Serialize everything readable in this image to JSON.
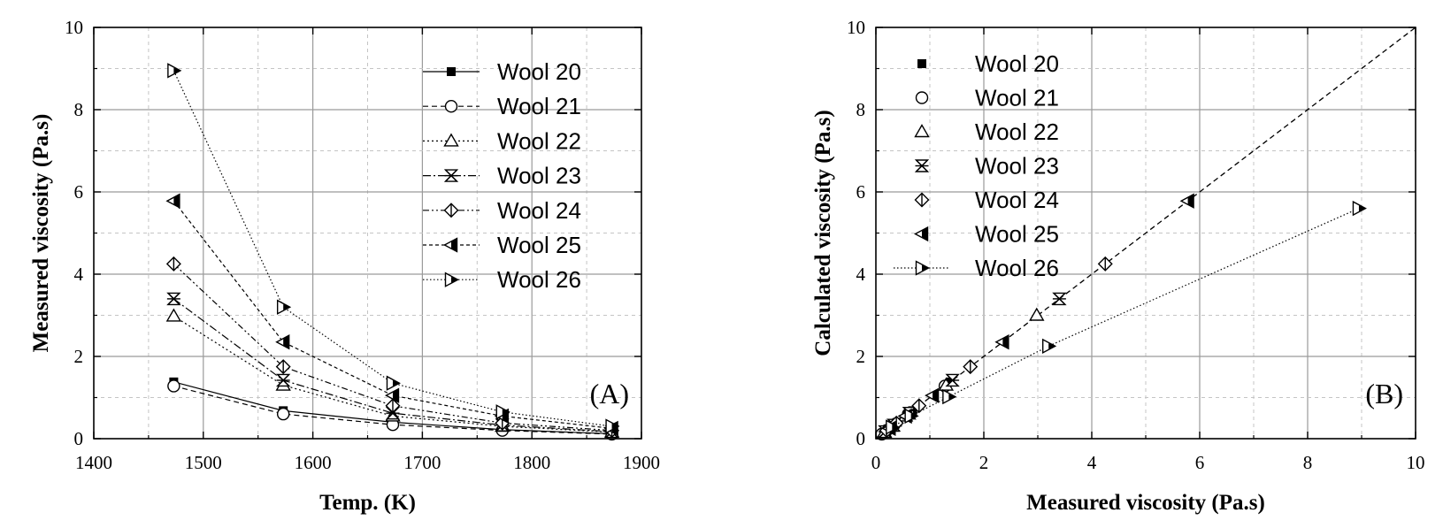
{
  "chart_data": [
    {
      "type": "line",
      "panel_label": "(A)",
      "xlabel": "Temp. (K)",
      "ylabel": "Measured viscosity (Pa.s)",
      "xlim": [
        1400,
        1900
      ],
      "ylim": [
        0,
        10
      ],
      "xticks": [
        "1400",
        "1500",
        "1600",
        "1700",
        "1800",
        "1900"
      ],
      "yticks": [
        "0",
        "2",
        "4",
        "6",
        "8",
        "10"
      ],
      "legend_position": "top-right",
      "x": [
        1473,
        1573,
        1673,
        1773,
        1873
      ],
      "series": [
        {
          "name": "Wool 20",
          "marker": "square-filled",
          "dash": "solid",
          "values": [
            1.38,
            0.68,
            0.4,
            0.22,
            0.12
          ]
        },
        {
          "name": "Wool 21",
          "marker": "circle-open",
          "dash": "dashed",
          "values": [
            1.28,
            0.6,
            0.34,
            0.2,
            0.11
          ]
        },
        {
          "name": "Wool 22",
          "marker": "triangle-open",
          "dash": "dotted",
          "values": [
            2.98,
            1.3,
            0.55,
            0.3,
            0.16
          ]
        },
        {
          "name": "Wool 23",
          "marker": "hourglass",
          "dash": "dashdot",
          "values": [
            3.4,
            1.42,
            0.62,
            0.33,
            0.17
          ]
        },
        {
          "name": "Wool 24",
          "marker": "diamond-half",
          "dash": "dashdotdot",
          "values": [
            4.25,
            1.75,
            0.8,
            0.38,
            0.2
          ]
        },
        {
          "name": "Wool 25",
          "marker": "triangle-left-half",
          "dash": "shortdash",
          "values": [
            5.78,
            2.35,
            1.05,
            0.55,
            0.25
          ]
        },
        {
          "name": "Wool 26",
          "marker": "triangle-right-half",
          "dash": "fine-dotted",
          "values": [
            8.95,
            3.2,
            1.35,
            0.65,
            0.3
          ]
        }
      ]
    },
    {
      "type": "scatter",
      "panel_label": "(B)",
      "xlabel": "Measured viscosity (Pa.s)",
      "ylabel": "Calculated viscosity (Pa.s)",
      "xlim": [
        0,
        10
      ],
      "ylim": [
        0,
        10
      ],
      "xticks": [
        "0",
        "2",
        "4",
        "6",
        "8",
        "10"
      ],
      "yticks": [
        "0",
        "2",
        "4",
        "6",
        "8",
        "10"
      ],
      "legend_position": "top-left",
      "reference_line": {
        "name": "y = x",
        "from": [
          0,
          0
        ],
        "to": [
          10,
          10
        ],
        "dash": "dashed"
      },
      "series": [
        {
          "name": "Wool 20",
          "marker": "square-filled",
          "points": [
            [
              1.38,
              1.38
            ],
            [
              0.68,
              0.68
            ],
            [
              0.4,
              0.4
            ],
            [
              0.22,
              0.22
            ],
            [
              0.12,
              0.12
            ]
          ]
        },
        {
          "name": "Wool 21",
          "marker": "circle-open",
          "points": [
            [
              1.28,
              1.28
            ],
            [
              0.6,
              0.6
            ],
            [
              0.34,
              0.34
            ],
            [
              0.2,
              0.2
            ],
            [
              0.11,
              0.11
            ]
          ]
        },
        {
          "name": "Wool 22",
          "marker": "triangle-open",
          "points": [
            [
              2.98,
              3.0
            ],
            [
              1.3,
              1.3
            ],
            [
              0.55,
              0.55
            ],
            [
              0.3,
              0.3
            ],
            [
              0.16,
              0.16
            ]
          ]
        },
        {
          "name": "Wool 23",
          "marker": "hourglass",
          "points": [
            [
              3.4,
              3.4
            ],
            [
              1.42,
              1.42
            ],
            [
              0.62,
              0.62
            ],
            [
              0.33,
              0.33
            ],
            [
              0.17,
              0.17
            ]
          ]
        },
        {
          "name": "Wool 24",
          "marker": "diamond-half",
          "points": [
            [
              4.25,
              4.25
            ],
            [
              1.75,
              1.75
            ],
            [
              0.8,
              0.8
            ],
            [
              0.38,
              0.38
            ],
            [
              0.2,
              0.2
            ]
          ]
        },
        {
          "name": "Wool 25",
          "marker": "triangle-left-half",
          "points": [
            [
              5.78,
              5.78
            ],
            [
              2.35,
              2.35
            ],
            [
              1.05,
              1.05
            ],
            [
              0.55,
              0.55
            ],
            [
              0.25,
              0.25
            ]
          ]
        },
        {
          "name": "Wool 26",
          "marker": "triangle-right-half",
          "line": "fine-dotted",
          "points": [
            [
              8.95,
              5.6
            ],
            [
              3.2,
              2.25
            ],
            [
              1.35,
              1.02
            ],
            [
              0.65,
              0.55
            ],
            [
              0.3,
              0.28
            ]
          ]
        }
      ]
    }
  ]
}
